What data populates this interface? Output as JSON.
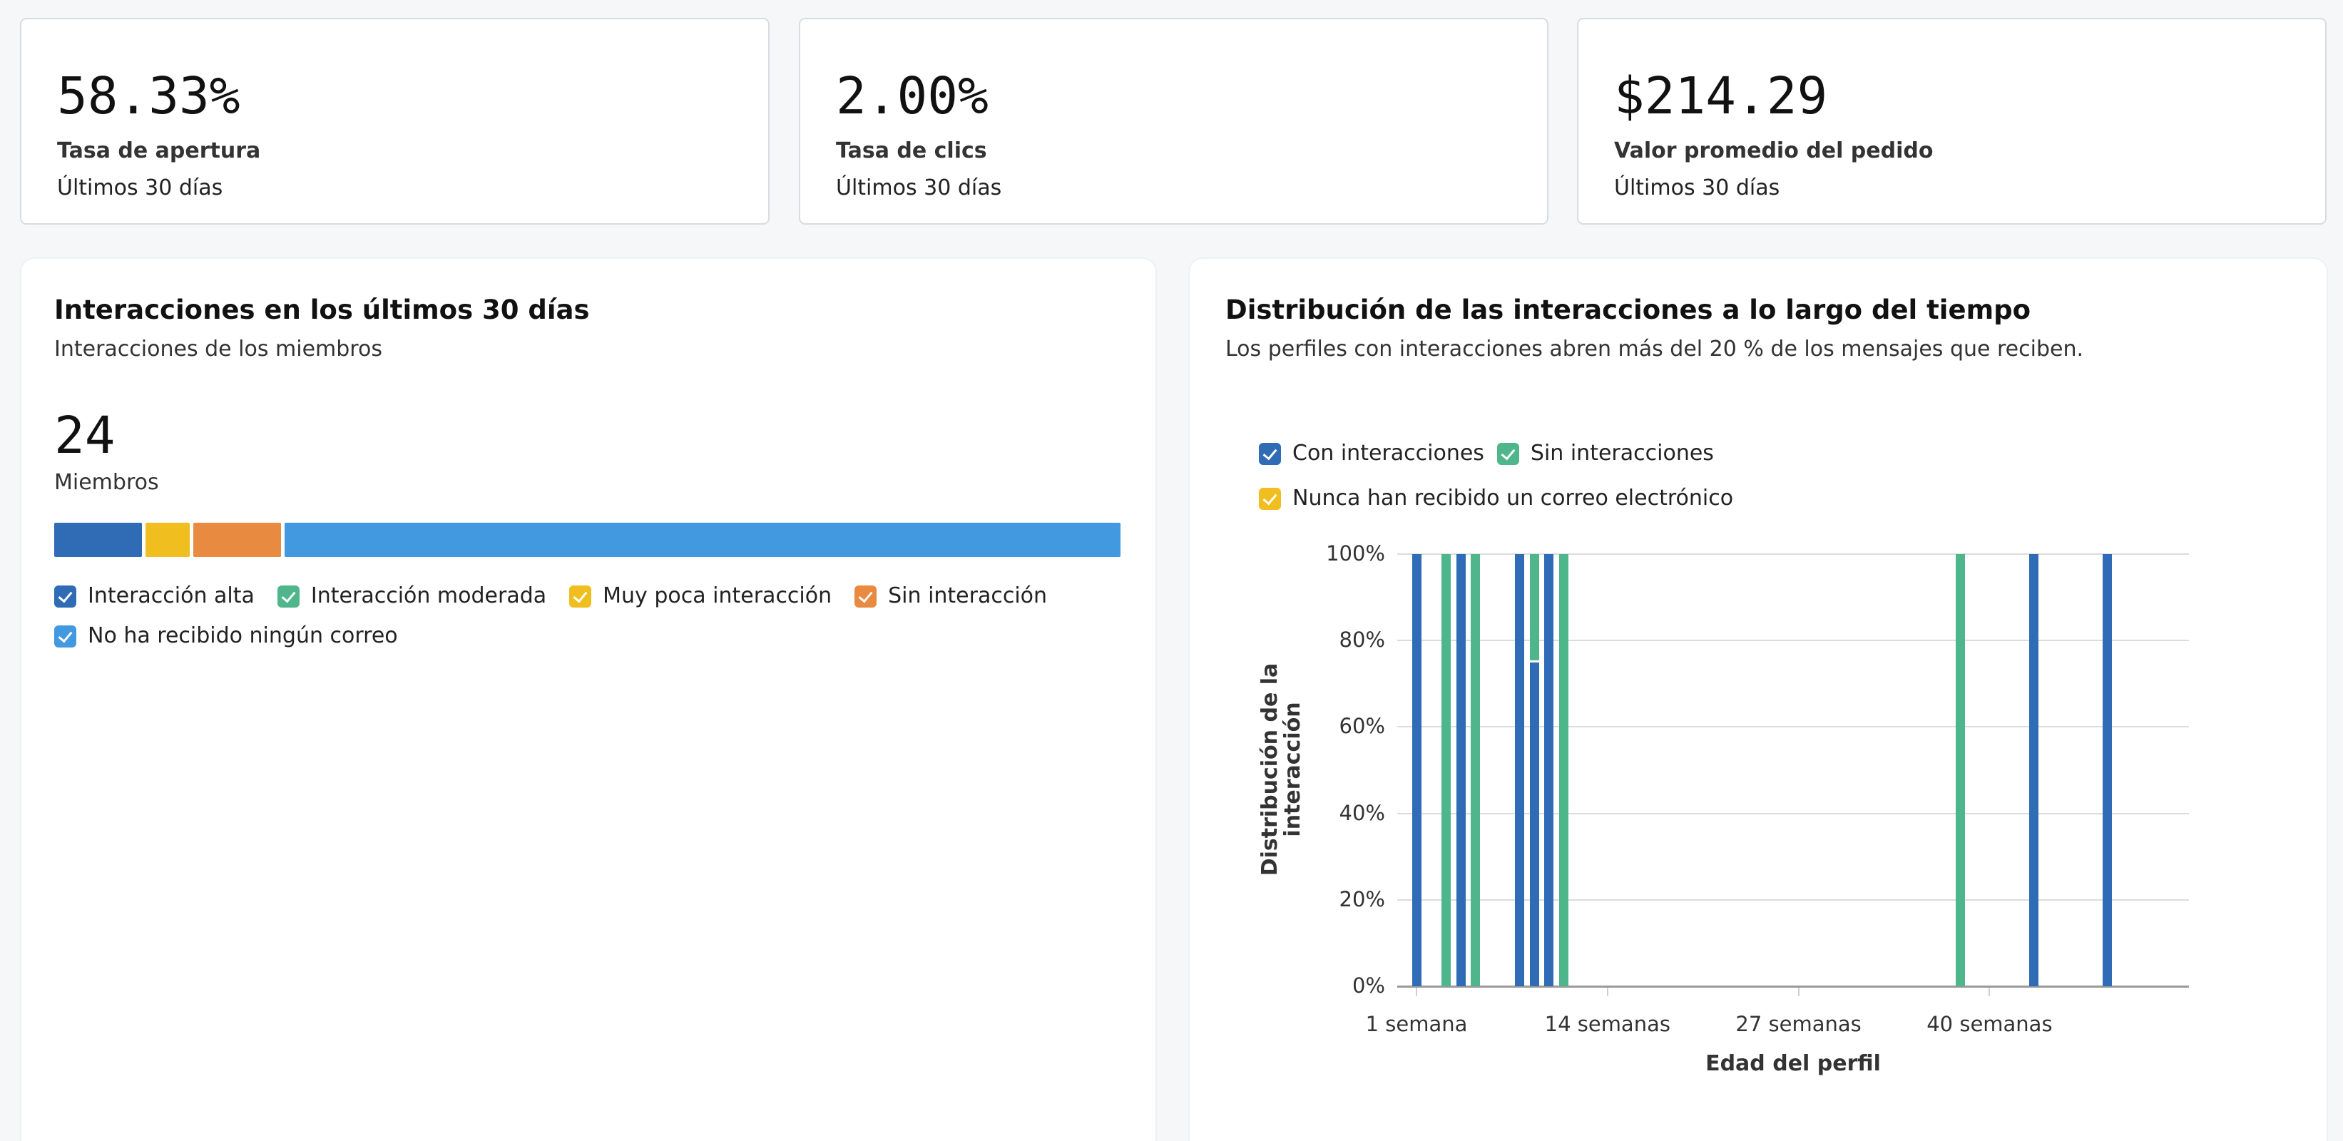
{
  "colors": {
    "high": "#2f6cb5",
    "moderate": "#4fb68c",
    "low": "#f0be1e",
    "none": "#e88a40",
    "no_email": "#4399e0"
  },
  "kpis": [
    {
      "value": "58.33%",
      "label": "Tasa de apertura",
      "period": "Últimos 30 días"
    },
    {
      "value": "2.00%",
      "label": "Tasa de clics",
      "period": "Últimos 30 días"
    },
    {
      "value": "$214.29",
      "label": "Valor promedio del pedido",
      "period": "Últimos 30 días"
    }
  ],
  "engagement_panel": {
    "title": "Interacciones en los últimos 30 días",
    "subtitle": "Interacciones de los miembros",
    "count": "24",
    "count_label": "Miembros",
    "legend": [
      {
        "label": "Interacción alta",
        "color": "#2f6cb5"
      },
      {
        "label": "Interacción moderada",
        "color": "#4fb68c"
      },
      {
        "label": "Muy poca interacción",
        "color": "#f0be1e"
      },
      {
        "label": "Sin interacción",
        "color": "#e88a40"
      },
      {
        "label": "No ha recibido ningún correo",
        "color": "#4399e0"
      }
    ]
  },
  "distribution_panel": {
    "title": "Distribución de las interacciones a lo largo del tiempo",
    "subtitle": "Los perfiles con interacciones abren más del 20 % de los mensajes que reciben.",
    "legend": [
      {
        "label": "Con interacciones",
        "color": "#2f6cb5"
      },
      {
        "label": "Sin interacciones",
        "color": "#4fb68c"
      },
      {
        "label": "Nunca han recibido un correo electrónico",
        "color": "#f0be1e"
      }
    ]
  },
  "chart_data": [
    {
      "type": "bar",
      "orientation": "horizontal-stacked",
      "title": "Interacciones en los últimos 30 días",
      "total": 24,
      "categories": [
        "Interacción alta",
        "Interacción moderada",
        "Muy poca interacción",
        "Sin interacción",
        "No ha recibido ningún correo"
      ],
      "values": [
        2,
        0,
        1,
        2,
        19
      ]
    },
    {
      "type": "bar",
      "stacked": true,
      "title": "Distribución de las interacciones a lo largo del tiempo",
      "xlabel": "Edad del perfil",
      "ylabel": "Distribución de la interacción",
      "x_tick_labels": [
        "1 semana",
        "14 semanas",
        "27 semanas",
        "40 semanas"
      ],
      "y_tick_labels": [
        "0%",
        "20%",
        "40%",
        "60%",
        "80%",
        "100%"
      ],
      "ylim": [
        0,
        100
      ],
      "grid": true,
      "legend_position": "top",
      "x": [
        1,
        3,
        4,
        5,
        8,
        9,
        10,
        11,
        38,
        43,
        48
      ],
      "series": [
        {
          "name": "Con interacciones",
          "values": [
            100,
            0,
            100,
            0,
            100,
            75,
            100,
            0,
            0,
            100,
            100
          ]
        },
        {
          "name": "Sin interacciones",
          "values": [
            0,
            100,
            0,
            100,
            0,
            25,
            0,
            100,
            100,
            0,
            0
          ]
        },
        {
          "name": "Nunca han recibido un correo electrónico",
          "values": [
            0,
            0,
            0,
            0,
            0,
            0,
            0,
            0,
            0,
            0,
            0
          ]
        }
      ]
    }
  ]
}
